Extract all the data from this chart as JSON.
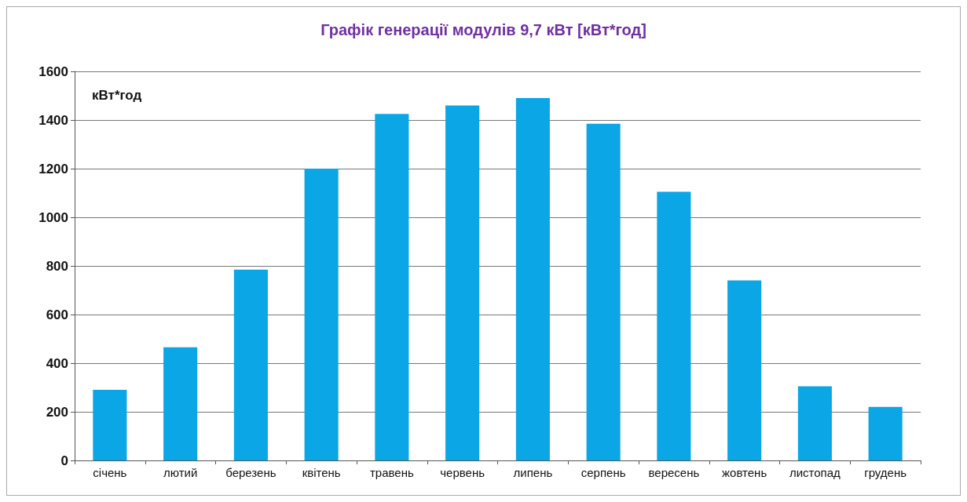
{
  "chart_data": {
    "type": "bar",
    "title": "Графік генерації модулів 9,7 кВт [кВт*год]",
    "ylabel": "кВт*год",
    "categories": [
      "січень",
      "лютий",
      "березень",
      "квітень",
      "травень",
      "червень",
      "липень",
      "серпень",
      "вересень",
      "жовтень",
      "листопад",
      "грудень"
    ],
    "values": [
      290,
      465,
      785,
      1200,
      1425,
      1460,
      1490,
      1385,
      1105,
      740,
      305,
      220
    ],
    "color": "#0aa6e6",
    "ylim": [
      0,
      1600
    ],
    "yticks": [
      0,
      200,
      400,
      600,
      800,
      1000,
      1200,
      1400,
      1600
    ],
    "grid": "y"
  }
}
